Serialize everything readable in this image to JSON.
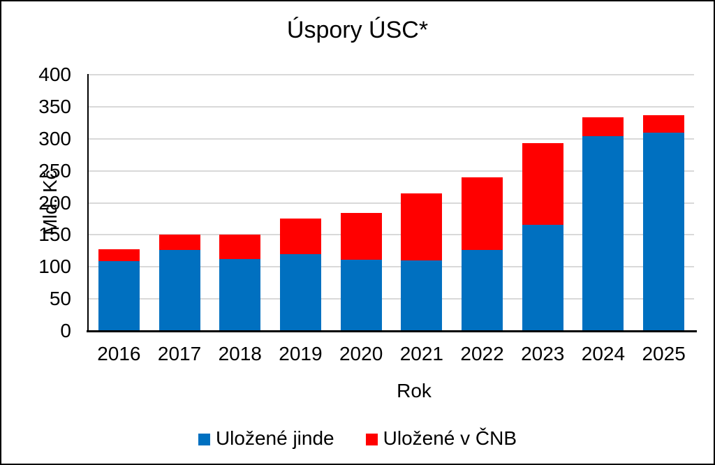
{
  "page": {
    "background_color": "#FFFFFF",
    "frame_border_color": "#000000"
  },
  "chart_data": {
    "type": "bar",
    "stacked": true,
    "title": "Úspory ÚSC*",
    "xlabel": "Rok",
    "ylabel": "Mld. Kč",
    "categories": [
      "2016",
      "2017",
      "2018",
      "2019",
      "2020",
      "2021",
      "2022",
      "2023",
      "2024",
      "2025"
    ],
    "series": [
      {
        "name": "Uložené jinde",
        "color": "#0070C0",
        "values": [
          109,
          126,
          112,
          120,
          111,
          110,
          126,
          166,
          304,
          309
        ]
      },
      {
        "name": "Uložené v ČNB",
        "color": "#FF0000",
        "values": [
          18,
          24,
          38,
          56,
          73,
          105,
          114,
          127,
          29,
          28
        ]
      }
    ],
    "totals": [
      127,
      150,
      150,
      176,
      184,
      215,
      240,
      293,
      333,
      337
    ],
    "ylim": [
      0,
      400
    ],
    "ytick_step": 50,
    "ytick_labels": [
      "0",
      "50",
      "100",
      "150",
      "200",
      "250",
      "300",
      "350",
      "400"
    ],
    "grid": true,
    "gridline_color": "#D9D9D9",
    "axis_color": "#000000",
    "legend_position": "bottom"
  }
}
